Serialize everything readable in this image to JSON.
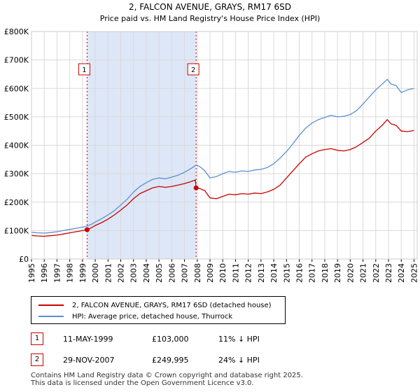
{
  "chart_data": {
    "type": "line",
    "title": "2, FALCON AVENUE, GRAYS, RM17 6SD",
    "subtitle": "Price paid vs. HM Land Registry's House Price Index (HPI)",
    "xlabel": "",
    "ylabel": "",
    "xlim": [
      1995,
      2025.25
    ],
    "ylim": [
      0,
      800000
    ],
    "yticks": [
      0,
      100000,
      200000,
      300000,
      400000,
      500000,
      600000,
      700000,
      800000
    ],
    "ytick_labels": [
      "£0",
      "£100K",
      "£200K",
      "£300K",
      "£400K",
      "£500K",
      "£600K",
      "£700K",
      "£800K"
    ],
    "xticks": [
      1995,
      1996,
      1997,
      1998,
      1999,
      2000,
      2001,
      2002,
      2003,
      2004,
      2005,
      2006,
      2007,
      2008,
      2009,
      2010,
      2011,
      2012,
      2013,
      2014,
      2015,
      2016,
      2017,
      2018,
      2019,
      2020,
      2021,
      2022,
      2023,
      2024,
      2025
    ],
    "grid": true,
    "series": [
      {
        "name": "2, FALCON AVENUE, GRAYS, RM17 6SD (detached house)",
        "color": "#cc0000",
        "points": [
          [
            1995.0,
            83000
          ],
          [
            1995.5,
            81000
          ],
          [
            1996.0,
            80000
          ],
          [
            1996.5,
            82000
          ],
          [
            1997.0,
            84000
          ],
          [
            1997.5,
            88000
          ],
          [
            1998.0,
            92000
          ],
          [
            1998.5,
            96000
          ],
          [
            1999.0,
            100000
          ],
          [
            1999.36,
            103000
          ],
          [
            1999.7,
            110000
          ],
          [
            2000.0,
            118000
          ],
          [
            2000.5,
            128000
          ],
          [
            2001.0,
            140000
          ],
          [
            2001.5,
            155000
          ],
          [
            2002.0,
            172000
          ],
          [
            2002.5,
            190000
          ],
          [
            2003.0,
            212000
          ],
          [
            2003.5,
            230000
          ],
          [
            2004.0,
            240000
          ],
          [
            2004.5,
            250000
          ],
          [
            2005.0,
            255000
          ],
          [
            2005.5,
            252000
          ],
          [
            2006.0,
            255000
          ],
          [
            2006.5,
            260000
          ],
          [
            2007.0,
            265000
          ],
          [
            2007.5,
            272000
          ],
          [
            2007.85,
            278000
          ],
          [
            2007.91,
            249995
          ],
          [
            2008.2,
            248000
          ],
          [
            2008.6,
            240000
          ],
          [
            2009.0,
            215000
          ],
          [
            2009.5,
            212000
          ],
          [
            2010.0,
            220000
          ],
          [
            2010.5,
            228000
          ],
          [
            2011.0,
            226000
          ],
          [
            2011.5,
            230000
          ],
          [
            2012.0,
            228000
          ],
          [
            2012.5,
            232000
          ],
          [
            2013.0,
            230000
          ],
          [
            2013.5,
            236000
          ],
          [
            2014.0,
            245000
          ],
          [
            2014.5,
            260000
          ],
          [
            2015.0,
            285000
          ],
          [
            2015.5,
            310000
          ],
          [
            2016.0,
            335000
          ],
          [
            2016.5,
            358000
          ],
          [
            2017.0,
            370000
          ],
          [
            2017.5,
            380000
          ],
          [
            2018.0,
            385000
          ],
          [
            2018.5,
            388000
          ],
          [
            2019.0,
            382000
          ],
          [
            2019.5,
            380000
          ],
          [
            2020.0,
            385000
          ],
          [
            2020.5,
            395000
          ],
          [
            2021.0,
            410000
          ],
          [
            2021.5,
            425000
          ],
          [
            2022.0,
            450000
          ],
          [
            2022.5,
            470000
          ],
          [
            2022.9,
            490000
          ],
          [
            2023.2,
            475000
          ],
          [
            2023.6,
            470000
          ],
          [
            2024.0,
            450000
          ],
          [
            2024.5,
            448000
          ],
          [
            2025.0,
            452000
          ]
        ]
      },
      {
        "name": "HPI: Average price, detached house, Thurrock",
        "color": "#5b8fd1",
        "points": [
          [
            1995.0,
            94000
          ],
          [
            1995.5,
            92000
          ],
          [
            1996.0,
            91000
          ],
          [
            1996.5,
            93000
          ],
          [
            1997.0,
            96000
          ],
          [
            1997.5,
            100000
          ],
          [
            1998.0,
            104000
          ],
          [
            1998.5,
            108000
          ],
          [
            1999.0,
            112000
          ],
          [
            1999.36,
            116000
          ],
          [
            1999.7,
            122000
          ],
          [
            2000.0,
            130000
          ],
          [
            2000.5,
            142000
          ],
          [
            2001.0,
            155000
          ],
          [
            2001.5,
            170000
          ],
          [
            2002.0,
            190000
          ],
          [
            2002.5,
            210000
          ],
          [
            2003.0,
            235000
          ],
          [
            2003.5,
            255000
          ],
          [
            2004.0,
            268000
          ],
          [
            2004.5,
            280000
          ],
          [
            2005.0,
            285000
          ],
          [
            2005.5,
            282000
          ],
          [
            2006.0,
            288000
          ],
          [
            2006.5,
            295000
          ],
          [
            2007.0,
            305000
          ],
          [
            2007.5,
            318000
          ],
          [
            2007.91,
            330000
          ],
          [
            2008.2,
            325000
          ],
          [
            2008.6,
            310000
          ],
          [
            2009.0,
            285000
          ],
          [
            2009.5,
            290000
          ],
          [
            2010.0,
            300000
          ],
          [
            2010.5,
            308000
          ],
          [
            2011.0,
            305000
          ],
          [
            2011.5,
            310000
          ],
          [
            2012.0,
            308000
          ],
          [
            2012.5,
            313000
          ],
          [
            2013.0,
            315000
          ],
          [
            2013.5,
            322000
          ],
          [
            2014.0,
            335000
          ],
          [
            2014.5,
            355000
          ],
          [
            2015.0,
            378000
          ],
          [
            2015.5,
            405000
          ],
          [
            2016.0,
            435000
          ],
          [
            2016.5,
            460000
          ],
          [
            2017.0,
            478000
          ],
          [
            2017.5,
            490000
          ],
          [
            2018.0,
            498000
          ],
          [
            2018.5,
            505000
          ],
          [
            2019.0,
            500000
          ],
          [
            2019.5,
            502000
          ],
          [
            2020.0,
            508000
          ],
          [
            2020.5,
            522000
          ],
          [
            2021.0,
            545000
          ],
          [
            2021.5,
            570000
          ],
          [
            2022.0,
            595000
          ],
          [
            2022.5,
            615000
          ],
          [
            2022.9,
            632000
          ],
          [
            2023.2,
            615000
          ],
          [
            2023.6,
            610000
          ],
          [
            2024.0,
            585000
          ],
          [
            2024.5,
            595000
          ],
          [
            2025.0,
            600000
          ]
        ]
      }
    ],
    "sales": [
      {
        "id": "1",
        "x": 1999.36,
        "price": 103000
      },
      {
        "id": "2",
        "x": 2007.91,
        "price": 249995
      }
    ],
    "shaded_span": [
      1999.36,
      2007.91
    ]
  },
  "legend": {
    "property_label": "2, FALCON AVENUE, GRAYS, RM17 6SD (detached house)",
    "hpi_label": "HPI: Average price, detached house, Thurrock"
  },
  "sales_table": [
    {
      "id": "1",
      "date": "11-MAY-1999",
      "price": "£103,000",
      "hpi": "11% ↓ HPI"
    },
    {
      "id": "2",
      "date": "29-NOV-2007",
      "price": "£249,995",
      "hpi": "24% ↓ HPI"
    }
  ],
  "footer": {
    "line1": "Contains HM Land Registry data © Crown copyright and database right 2025.",
    "line2": "This data is licensed under the Open Government Licence v3.0."
  },
  "colors": {
    "property": "#cc0000",
    "hpi": "#5b8fd1",
    "shade": "#dde7f7",
    "grid": "#d9d9d9"
  }
}
